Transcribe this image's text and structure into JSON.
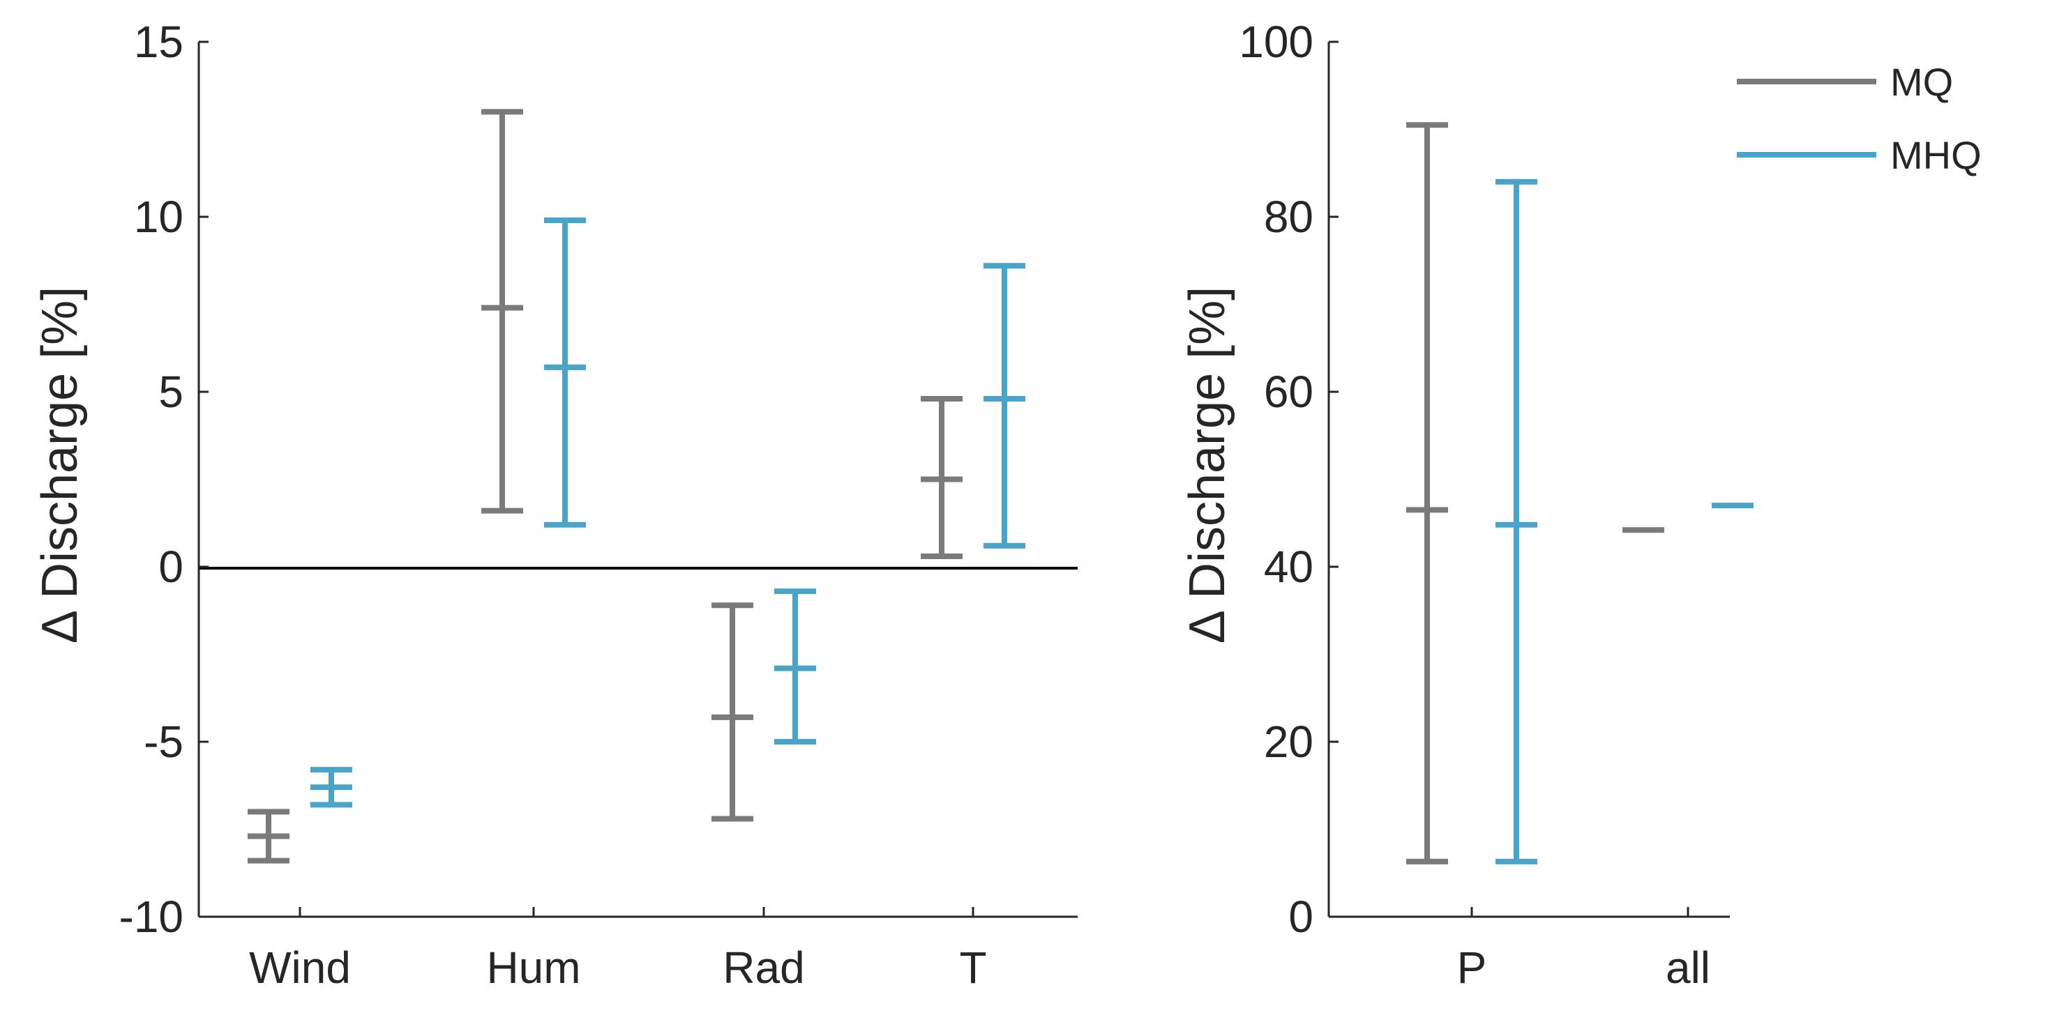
{
  "series_colors": {
    "MQ": "#7a7a7a",
    "MHQ": "#4aa3c8"
  },
  "chart_data": [
    {
      "type": "errorbar",
      "ylabel": "Δ Discharge [%]",
      "ylim": [
        -10,
        15
      ],
      "yticks": [
        -10,
        -5,
        0,
        5,
        10,
        15
      ],
      "ytick_labels": [
        "-10",
        "-5",
        "0",
        "5",
        "10",
        "15"
      ],
      "zero_line": true,
      "categories": [
        "Wind",
        "Hum",
        "Rad",
        "T"
      ],
      "series": [
        {
          "name": "MQ",
          "mean": [
            -7.7,
            7.4,
            -4.3,
            2.5
          ],
          "lower": [
            -8.4,
            1.6,
            -7.2,
            0.3
          ],
          "upper": [
            -7.0,
            13.0,
            -1.1,
            4.8
          ]
        },
        {
          "name": "MHQ",
          "mean": [
            -6.3,
            5.7,
            -2.9,
            4.8
          ],
          "lower": [
            -6.8,
            1.2,
            -5.0,
            0.6
          ],
          "upper": [
            -5.8,
            9.9,
            -0.7,
            8.6
          ]
        }
      ]
    },
    {
      "type": "errorbar",
      "ylabel": "Δ Discharge [%]",
      "ylim": [
        0,
        100
      ],
      "yticks": [
        0,
        20,
        40,
        60,
        80,
        100
      ],
      "ytick_labels": [
        "0",
        "20",
        "40",
        "60",
        "80",
        "100"
      ],
      "categories": [
        "P",
        "all"
      ],
      "series": [
        {
          "name": "MQ",
          "mean": [
            46.5,
            44.2
          ],
          "lower": [
            6.3,
            44.2
          ],
          "upper": [
            90.5,
            44.2
          ]
        },
        {
          "name": "MHQ",
          "mean": [
            44.8,
            47.0
          ],
          "lower": [
            6.3,
            47.0
          ],
          "upper": [
            84.0,
            47.0
          ]
        }
      ],
      "legend": {
        "placement": "top-right",
        "entries": [
          "MQ",
          "MHQ"
        ]
      }
    }
  ]
}
